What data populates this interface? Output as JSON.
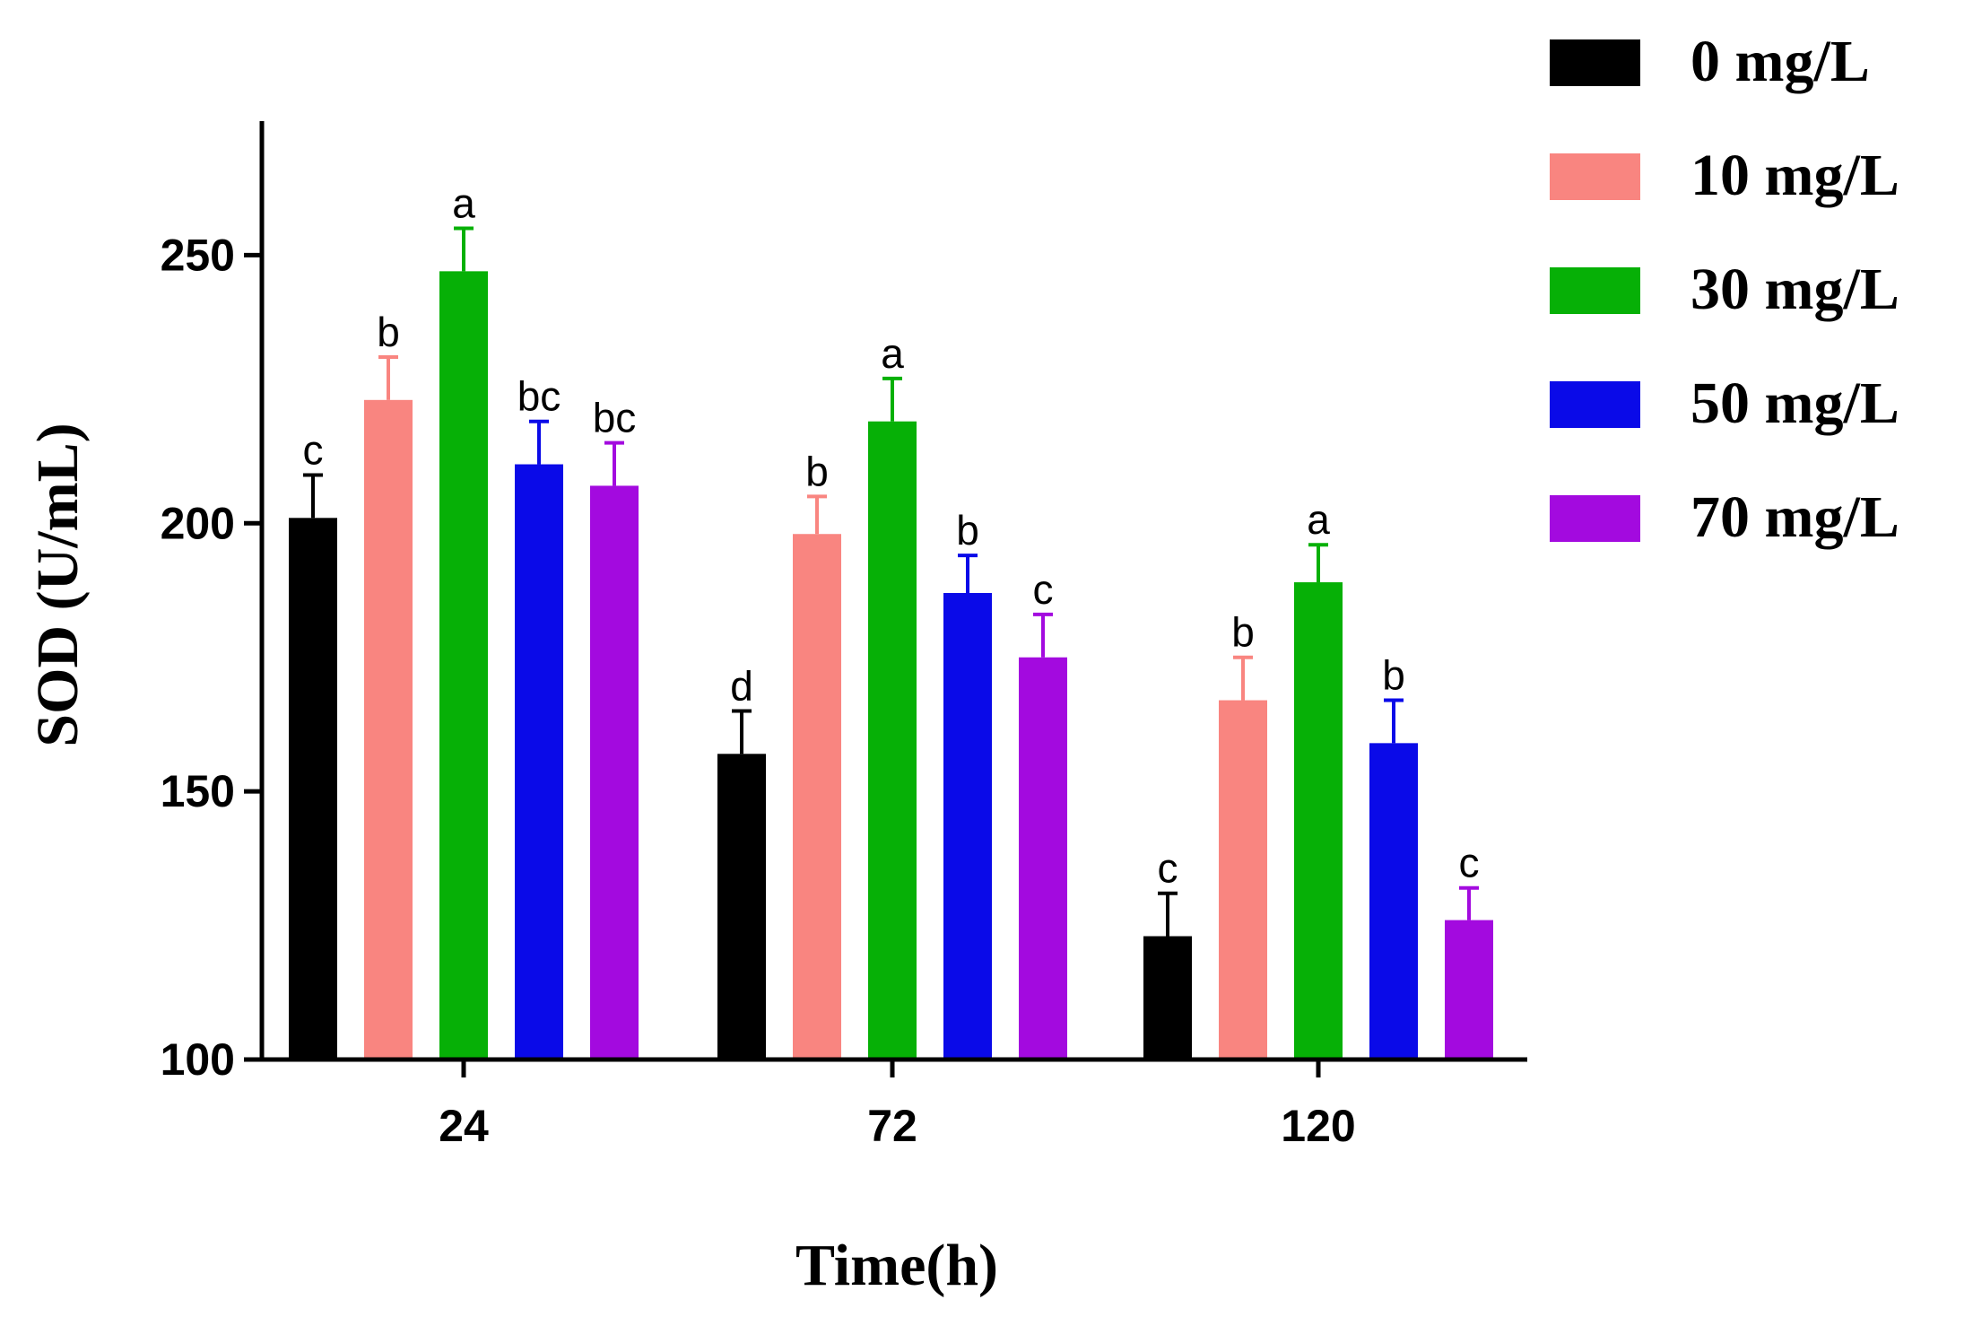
{
  "chart_data": {
    "type": "bar",
    "title": "",
    "xlabel": "Time(h)",
    "ylabel": "SOD (U/mL)",
    "ylim": [
      100,
      275
    ],
    "yticks": [
      100,
      150,
      200,
      250
    ],
    "categories": [
      "24",
      "72",
      "120"
    ],
    "series": [
      {
        "name": "0 mg/L",
        "color": "#000000",
        "values": [
          201,
          157,
          123
        ],
        "errors": [
          8,
          8,
          8
        ],
        "letters": [
          "c",
          "d",
          "c"
        ]
      },
      {
        "name": "10 mg/L",
        "color": "#f98580",
        "values": [
          223,
          198,
          167
        ],
        "errors": [
          8,
          7,
          8
        ],
        "letters": [
          "b",
          "b",
          "b"
        ]
      },
      {
        "name": "30 mg/L",
        "color": "#06b006",
        "values": [
          247,
          219,
          189
        ],
        "errors": [
          8,
          8,
          7
        ],
        "letters": [
          "a",
          "a",
          "a"
        ]
      },
      {
        "name": "50 mg/L",
        "color": "#0a0ae8",
        "values": [
          211,
          187,
          159
        ],
        "errors": [
          8,
          7,
          8
        ],
        "letters": [
          "bc",
          "b",
          "b"
        ]
      },
      {
        "name": "70 mg/L",
        "color": "#a30adf",
        "values": [
          207,
          175,
          126
        ],
        "errors": [
          8,
          8,
          6
        ],
        "letters": [
          "bc",
          "c",
          "c"
        ]
      }
    ],
    "legend_position": "top-right",
    "grid": false
  }
}
